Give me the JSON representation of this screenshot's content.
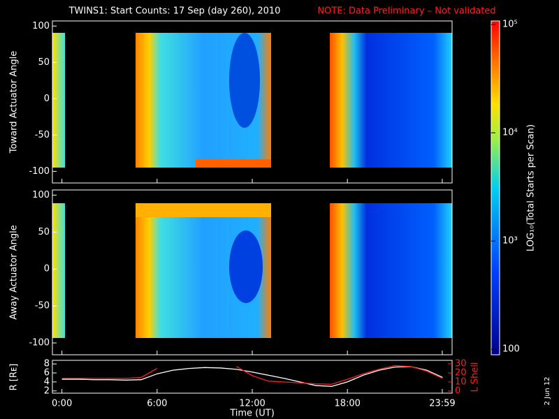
{
  "chart_data": [
    {
      "type": "heatmap",
      "title": "TWINS1: Start Counts: 17 Sep (day 260), 2010",
      "note": "NOTE: Data Preliminary – Not validated",
      "ylabel": "Toward Actuator Angle",
      "ylim": [
        -116,
        107
      ],
      "yticks": [
        -100,
        -50,
        0,
        50,
        100
      ],
      "xlim": [
        -0.6,
        24.6
      ]
    },
    {
      "type": "heatmap",
      "ylabel": "Away Actuator Angle",
      "ylim": [
        -116,
        107
      ],
      "yticks": [
        -100,
        -50,
        0,
        50,
        100
      ],
      "xlim": [
        -0.6,
        24.6
      ]
    },
    {
      "type": "line",
      "xlabel": "Time (UT)",
      "xlim": [
        -0.6,
        24.6
      ],
      "xticks": [
        {
          "value": 0,
          "label": "0:00"
        },
        {
          "value": 6,
          "label": "6:00"
        },
        {
          "value": 12,
          "label": "12:00"
        },
        {
          "value": 18,
          "label": "18:00"
        },
        {
          "value": 23.98,
          "label": "23:59"
        }
      ],
      "x": [
        0,
        1,
        2,
        3,
        4,
        5,
        6,
        7,
        8,
        9,
        10,
        11,
        12,
        13,
        14,
        15,
        16,
        17,
        18,
        19,
        20,
        21,
        22,
        23,
        24
      ],
      "ylabel": "R [Rᴇ]",
      "ylim": [
        1.5,
        8.8
      ],
      "yticks": [
        2,
        4,
        6,
        8
      ],
      "y2label": "L Shell",
      "y2lim": [
        -2.3,
        33.8
      ],
      "y2ticks": [
        0,
        10,
        20,
        30
      ],
      "series": [
        {
          "name": "R",
          "color": "#ffffff",
          "values": [
            4.6,
            4.6,
            4.5,
            4.5,
            4.4,
            4.5,
            5.8,
            6.6,
            7.0,
            7.2,
            7.1,
            6.8,
            6.2,
            5.5,
            4.8,
            4.0,
            3.2,
            3.0,
            4.0,
            5.5,
            6.6,
            7.3,
            7.4,
            6.6,
            5.0
          ]
        },
        {
          "name": "L Shell",
          "color": "#ff2020",
          "axis": "y2",
          "values": [
            14,
            14,
            14,
            14,
            14,
            15,
            25,
            null,
            null,
            null,
            null,
            27,
            17,
            11,
            10,
            9,
            8,
            7.5,
            13,
            19,
            24,
            28,
            27,
            22,
            14
          ]
        }
      ]
    },
    {
      "type": "colorbar",
      "label": "LOG₁₀(Total Starts per Scan)",
      "log": true,
      "lim": [
        89,
        108000
      ],
      "ticks": [
        100,
        {
          "value": 1000,
          "label": "10³"
        },
        {
          "value": 10000,
          "label": "10⁴"
        },
        {
          "value": 100000,
          "label": "10⁵"
        }
      ]
    }
  ],
  "date_stamp": "2 Jun 12"
}
